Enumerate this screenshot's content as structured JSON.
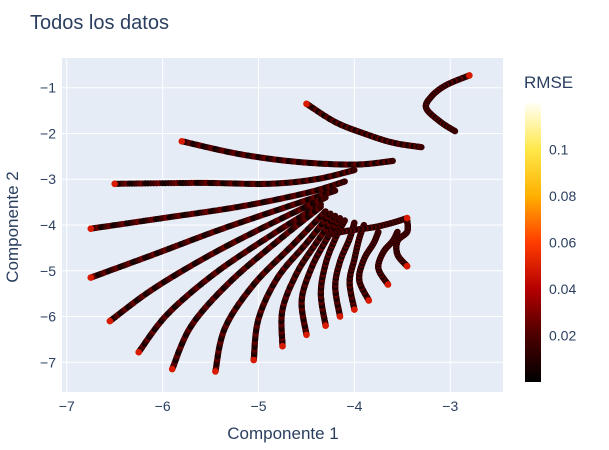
{
  "chart_data": {
    "type": "scatter",
    "title": "Todos los datos",
    "xlabel": "Componente 1",
    "ylabel": "Componente 2",
    "xlim": [
      -7.05,
      -2.45
    ],
    "ylim": [
      -7.65,
      -0.35
    ],
    "xticks": [
      -7,
      -6,
      -5,
      -4,
      -3
    ],
    "yticks": [
      -1,
      -2,
      -3,
      -4,
      -5,
      -6,
      -7
    ],
    "grid": true,
    "plot_bgcolor": "#e5ecf6",
    "colorbar": {
      "title": "RMSE",
      "range": [
        0.0,
        0.12
      ],
      "ticks": [
        0.02,
        0.04,
        0.06,
        0.08,
        0.1
      ],
      "colorscale": [
        "#000000",
        "#4b0000",
        "#b40000",
        "#ff3c00",
        "#ffb000",
        "#ffe84a",
        "#fffff5"
      ]
    },
    "series": [
      {
        "points": [
          [
            -2.8,
            -0.73
          ],
          [
            -3.05,
            -0.95
          ],
          [
            -3.2,
            -1.2
          ],
          [
            -3.25,
            -1.45
          ],
          [
            -3.1,
            -1.75
          ],
          [
            -2.95,
            -1.95
          ]
        ]
      },
      {
        "points": [
          [
            -4.5,
            -1.35
          ],
          [
            -4.2,
            -1.75
          ],
          [
            -3.9,
            -2.0
          ],
          [
            -3.6,
            -2.2
          ],
          [
            -3.3,
            -2.3
          ]
        ]
      },
      {
        "points": [
          [
            -5.8,
            -2.17
          ],
          [
            -5.2,
            -2.45
          ],
          [
            -4.6,
            -2.62
          ],
          [
            -4.0,
            -2.68
          ],
          [
            -3.6,
            -2.6
          ]
        ]
      },
      {
        "points": [
          [
            -6.5,
            -3.1
          ],
          [
            -5.6,
            -3.08
          ],
          [
            -4.9,
            -3.1
          ],
          [
            -4.4,
            -3.0
          ],
          [
            -4.0,
            -2.8
          ]
        ]
      },
      {
        "points": [
          [
            -6.75,
            -4.08
          ],
          [
            -6.0,
            -3.85
          ],
          [
            -5.2,
            -3.6
          ],
          [
            -4.5,
            -3.3
          ],
          [
            -4.1,
            -3.05
          ]
        ]
      },
      {
        "points": [
          [
            -6.75,
            -5.15
          ],
          [
            -6.1,
            -4.65
          ],
          [
            -5.4,
            -4.1
          ],
          [
            -4.7,
            -3.6
          ],
          [
            -4.2,
            -3.25
          ]
        ]
      },
      {
        "points": [
          [
            -6.55,
            -6.1
          ],
          [
            -6.1,
            -5.4
          ],
          [
            -5.5,
            -4.65
          ],
          [
            -4.85,
            -3.95
          ],
          [
            -4.3,
            -3.4
          ]
        ]
      },
      {
        "points": [
          [
            -6.25,
            -6.78
          ],
          [
            -5.95,
            -5.95
          ],
          [
            -5.45,
            -5.05
          ],
          [
            -4.85,
            -4.2
          ],
          [
            -4.35,
            -3.55
          ]
        ]
      },
      {
        "points": [
          [
            -5.9,
            -7.15
          ],
          [
            -5.7,
            -6.2
          ],
          [
            -5.3,
            -5.25
          ],
          [
            -4.8,
            -4.35
          ],
          [
            -4.35,
            -3.6
          ]
        ]
      },
      {
        "points": [
          [
            -5.45,
            -7.2
          ],
          [
            -5.35,
            -6.25
          ],
          [
            -5.05,
            -5.3
          ],
          [
            -4.65,
            -4.45
          ],
          [
            -4.3,
            -3.7
          ]
        ]
      },
      {
        "points": [
          [
            -5.05,
            -6.95
          ],
          [
            -5.0,
            -6.05
          ],
          [
            -4.8,
            -5.15
          ],
          [
            -4.5,
            -4.4
          ],
          [
            -4.25,
            -3.75
          ]
        ]
      },
      {
        "points": [
          [
            -4.75,
            -6.65
          ],
          [
            -4.75,
            -5.85
          ],
          [
            -4.6,
            -5.05
          ],
          [
            -4.4,
            -4.4
          ],
          [
            -4.2,
            -3.8
          ]
        ]
      },
      {
        "points": [
          [
            -4.5,
            -6.4
          ],
          [
            -4.55,
            -5.65
          ],
          [
            -4.45,
            -4.95
          ],
          [
            -4.3,
            -4.35
          ],
          [
            -4.15,
            -3.85
          ]
        ]
      },
      {
        "points": [
          [
            -4.3,
            -6.2
          ],
          [
            -4.35,
            -5.5
          ],
          [
            -4.3,
            -4.85
          ],
          [
            -4.2,
            -4.3
          ],
          [
            -4.1,
            -3.9
          ]
        ]
      },
      {
        "points": [
          [
            -4.15,
            -6.0
          ],
          [
            -4.2,
            -5.35
          ],
          [
            -4.15,
            -4.8
          ],
          [
            -4.05,
            -4.3
          ],
          [
            -4.0,
            -3.95
          ]
        ]
      },
      {
        "points": [
          [
            -4.0,
            -5.85
          ],
          [
            -4.05,
            -5.25
          ],
          [
            -4.0,
            -4.75
          ],
          [
            -3.95,
            -4.3
          ],
          [
            -3.9,
            -4.0
          ]
        ]
      },
      {
        "points": [
          [
            -3.85,
            -5.65
          ],
          [
            -3.95,
            -5.2
          ],
          [
            -3.9,
            -4.75
          ],
          [
            -3.8,
            -4.4
          ],
          [
            -3.75,
            -4.15
          ]
        ]
      },
      {
        "points": [
          [
            -3.65,
            -5.3
          ],
          [
            -3.75,
            -4.95
          ],
          [
            -3.7,
            -4.6
          ],
          [
            -3.6,
            -4.35
          ],
          [
            -3.55,
            -4.15
          ]
        ]
      },
      {
        "points": [
          [
            -3.45,
            -4.9
          ],
          [
            -3.55,
            -4.65
          ],
          [
            -3.55,
            -4.35
          ],
          [
            -3.45,
            -4.15
          ],
          [
            -3.45,
            -3.9
          ]
        ]
      },
      {
        "points": [
          [
            -3.45,
            -3.85
          ],
          [
            -3.6,
            -3.95
          ],
          [
            -3.8,
            -4.05
          ],
          [
            -4.05,
            -4.12
          ],
          [
            -4.25,
            -4.2
          ]
        ]
      }
    ]
  }
}
